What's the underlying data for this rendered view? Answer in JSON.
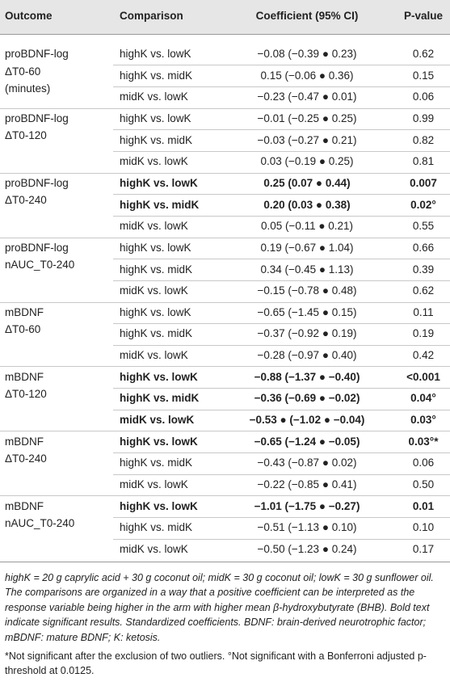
{
  "table": {
    "header": [
      "Outcome",
      "Comparison",
      "Coefficient (95% CI)",
      "P-value"
    ],
    "groups": [
      {
        "outcome": [
          "proBDNF-log",
          "ΔT0-60",
          "(minutes)"
        ],
        "rows": [
          {
            "comparison": "highK vs. lowK",
            "coefficient": "−0.08 (−0.39 ● 0.23)",
            "p": "0.62",
            "bold": false
          },
          {
            "comparison": "highK vs. midK",
            "coefficient": "0.15 (−0.06 ● 0.36)",
            "p": "0.15",
            "bold": false
          },
          {
            "comparison": "midK vs. lowK",
            "coefficient": "−0.23 (−0.47 ● 0.01)",
            "p": "0.06",
            "bold": false
          }
        ]
      },
      {
        "outcome": [
          "proBDNF-log",
          "ΔT0-120"
        ],
        "rows": [
          {
            "comparison": "highK vs. lowK",
            "coefficient": "−0.01 (−0.25 ● 0.25)",
            "p": "0.99",
            "bold": false
          },
          {
            "comparison": "highK vs. midK",
            "coefficient": "−0.03 (−0.27 ● 0.21)",
            "p": "0.82",
            "bold": false
          },
          {
            "comparison": "midK vs. lowK",
            "coefficient": "0.03 (−0.19 ● 0.25)",
            "p": "0.81",
            "bold": false
          }
        ]
      },
      {
        "outcome": [
          "proBDNF-log",
          "ΔT0-240"
        ],
        "rows": [
          {
            "comparison": "highK vs. lowK",
            "coefficient": "0.25 (0.07 ● 0.44)",
            "p": "0.007",
            "bold": true
          },
          {
            "comparison": "highK vs. midK",
            "coefficient": "0.20 (0.03 ● 0.38)",
            "p": "0.02°",
            "bold": true
          },
          {
            "comparison": "midK vs. lowK",
            "coefficient": "0.05 (−0.11 ● 0.21)",
            "p": "0.55",
            "bold": false
          }
        ]
      },
      {
        "outcome": [
          "proBDNF-log",
          "nAUC_T0-240"
        ],
        "rows": [
          {
            "comparison": "highK vs. lowK",
            "coefficient": "0.19 (−0.67 ● 1.04)",
            "p": "0.66",
            "bold": false
          },
          {
            "comparison": "highK vs. midK",
            "coefficient": "0.34 (−0.45 ● 1.13)",
            "p": "0.39",
            "bold": false
          },
          {
            "comparison": "midK vs. lowK",
            "coefficient": "−0.15 (−0.78 ● 0.48)",
            "p": "0.62",
            "bold": false
          }
        ]
      },
      {
        "outcome": [
          "mBDNF",
          "ΔT0-60"
        ],
        "rows": [
          {
            "comparison": "highK vs. lowK",
            "coefficient": "−0.65 (−1.45 ● 0.15)",
            "p": "0.11",
            "bold": false
          },
          {
            "comparison": "highK vs. midK",
            "coefficient": "−0.37 (−0.92 ● 0.19)",
            "p": "0.19",
            "bold": false
          },
          {
            "comparison": "midK vs. lowK",
            "coefficient": "−0.28 (−0.97 ● 0.40)",
            "p": "0.42",
            "bold": false
          }
        ]
      },
      {
        "outcome": [
          "mBDNF",
          "ΔT0-120"
        ],
        "rows": [
          {
            "comparison": "highK vs. lowK",
            "coefficient": "−0.88 (−1.37 ● −0.40)",
            "p": "<0.001",
            "bold": true
          },
          {
            "comparison": "highK vs. midK",
            "coefficient": "−0.36 (−0.69 ● −0.02)",
            "p": "0.04°",
            "bold": true
          },
          {
            "comparison": "midK vs. lowK",
            "coefficient": "−0.53 ● (−1.02 ● −0.04)",
            "p": "0.03°",
            "bold": true
          }
        ]
      },
      {
        "outcome": [
          "mBDNF",
          "ΔT0-240"
        ],
        "rows": [
          {
            "comparison": "highK vs. lowK",
            "coefficient": "−0.65 (−1.24 ● −0.05)",
            "p": "0.03°*",
            "bold": true
          },
          {
            "comparison": "highK vs. midK",
            "coefficient": "−0.43 (−0.87 ● 0.02)",
            "p": "0.06",
            "bold": false
          },
          {
            "comparison": "midK vs. lowK",
            "coefficient": "−0.22 (−0.85 ● 0.41)",
            "p": "0.50",
            "bold": false
          }
        ]
      },
      {
        "outcome": [
          "mBDNF",
          "nAUC_T0-240"
        ],
        "rows": [
          {
            "comparison": "highK vs. lowK",
            "coefficient": "−1.01 (−1.75 ● −0.27)",
            "p": "0.01",
            "bold": true
          },
          {
            "comparison": "highK vs. midK",
            "coefficient": "−0.51 (−1.13 ● 0.10)",
            "p": "0.10",
            "bold": false
          },
          {
            "comparison": "midK vs. lowK",
            "coefficient": "−0.50 (−1.23 ● 0.24)",
            "p": "0.17",
            "bold": false
          }
        ]
      }
    ]
  },
  "footnotes": [
    "highK = 20 g caprylic acid + 30 g coconut oil; midK = 30 g coconut oil; lowK = 30 g sunflower oil. The comparisons are organized in a way that a positive coefficient can be interpreted as the response variable being higher in the arm with higher mean β-hydroxybutyrate (BHB). Bold text indicate significant results. Standardized coefficients. BDNF: brain-derived neurotrophic factor; mBDNF: mature BDNF; K: ketosis.",
    "*Not significant after the exclusion of two outliers. °Not significant with a Bonferroni adjusted p-threshold at 0.0125."
  ]
}
